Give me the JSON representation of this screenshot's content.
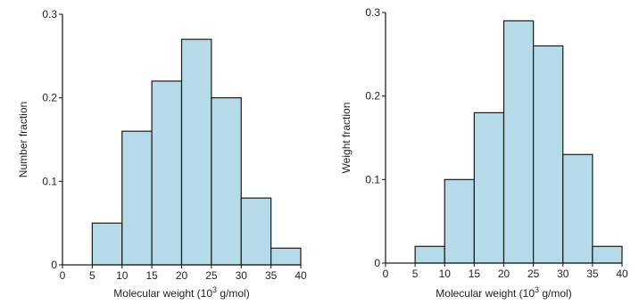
{
  "colors": {
    "bar_fill": "#b5dbe9",
    "axis": "#222222"
  },
  "chart_data": [
    {
      "type": "bar",
      "categories": [
        "5-10",
        "10-15",
        "15-20",
        "20-25",
        "25-30",
        "30-35",
        "35-40"
      ],
      "bins": [
        [
          5,
          10
        ],
        [
          10,
          15
        ],
        [
          15,
          20
        ],
        [
          20,
          25
        ],
        [
          25,
          30
        ],
        [
          30,
          35
        ],
        [
          35,
          40
        ]
      ],
      "values": [
        0.05,
        0.16,
        0.22,
        0.27,
        0.2,
        0.08,
        0.02
      ],
      "xlabel": "Molecular weight (10",
      "xlabel_sup": "3",
      "xlabel_suffix": " g/mol)",
      "ylabel": "Number fraction",
      "xlim": [
        0,
        40
      ],
      "ylim": [
        0,
        0.3
      ],
      "xticks": [
        0,
        5,
        10,
        15,
        20,
        25,
        30,
        35,
        40
      ],
      "xtick_labels": [
        "0",
        "5",
        "10",
        "15",
        "20",
        "25",
        "30",
        "35",
        "40"
      ],
      "yticks": [
        0,
        0.1,
        0.2,
        0.3
      ],
      "ytick_labels": [
        "0",
        "0.1",
        "0.2",
        "0.3"
      ],
      "grid": false,
      "legend": "none"
    },
    {
      "type": "bar",
      "categories": [
        "5-10",
        "10-15",
        "15-20",
        "20-25",
        "25-30",
        "30-35",
        "35-40"
      ],
      "bins": [
        [
          5,
          10
        ],
        [
          10,
          15
        ],
        [
          15,
          20
        ],
        [
          20,
          25
        ],
        [
          25,
          30
        ],
        [
          30,
          35
        ],
        [
          35,
          40
        ]
      ],
      "values": [
        0.02,
        0.1,
        0.18,
        0.29,
        0.26,
        0.13,
        0.02
      ],
      "xlabel": "Molecular weight (10",
      "xlabel_sup": "3",
      "xlabel_suffix": " g/mol)",
      "ylabel": "Weight fraction",
      "xlim": [
        0,
        40
      ],
      "ylim": [
        0,
        0.3
      ],
      "xticks": [
        0,
        5,
        10,
        15,
        20,
        25,
        30,
        35,
        40
      ],
      "xtick_labels": [
        "0",
        "5",
        "10",
        "15",
        "20",
        "25",
        "30",
        "35",
        "40"
      ],
      "yticks": [
        0,
        0.1,
        0.2,
        0.3
      ],
      "ytick_labels": [
        "0",
        "0.1",
        "0.2",
        "0.3"
      ],
      "grid": false,
      "legend": "none"
    }
  ]
}
